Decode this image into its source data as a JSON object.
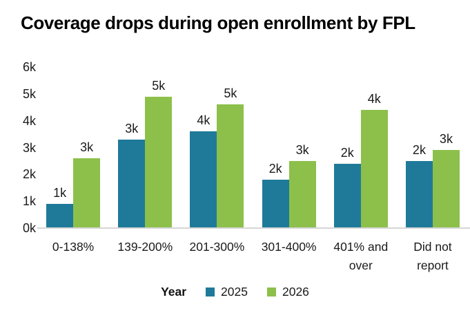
{
  "title": "Coverage drops during open enrollment by FPL",
  "colors": {
    "series_2025": "#1f7a99",
    "series_2026": "#8cc04b",
    "axis_line": "#d6d6d6",
    "text": "#1a1a1a"
  },
  "chart_data": {
    "type": "bar",
    "title": "Coverage drops during open enrollment by FPL",
    "categories": [
      "0-138%",
      "139-200%",
      "201-300%",
      "301-400%",
      "401% and over",
      "Did not report"
    ],
    "series": [
      {
        "name": "2025",
        "color": "#1f7a99",
        "values": [
          0.9,
          3.3,
          3.6,
          1.8,
          2.4,
          2.5
        ],
        "labels": [
          "1k",
          "3k",
          "4k",
          "2k",
          "2k",
          "2k"
        ]
      },
      {
        "name": "2026",
        "color": "#8cc04b",
        "values": [
          2.6,
          4.9,
          4.6,
          2.5,
          4.4,
          2.9
        ],
        "labels": [
          "3k",
          "5k",
          "5k",
          "3k",
          "4k",
          "3k"
        ]
      }
    ],
    "xlabel": "",
    "ylabel": "",
    "y_ticks": [
      "0k",
      "1k",
      "2k",
      "3k",
      "4k",
      "5k",
      "6k"
    ],
    "ylim": [
      0,
      6
    ],
    "grid": false,
    "legend_position": "bottom",
    "legend_title": "Year"
  }
}
